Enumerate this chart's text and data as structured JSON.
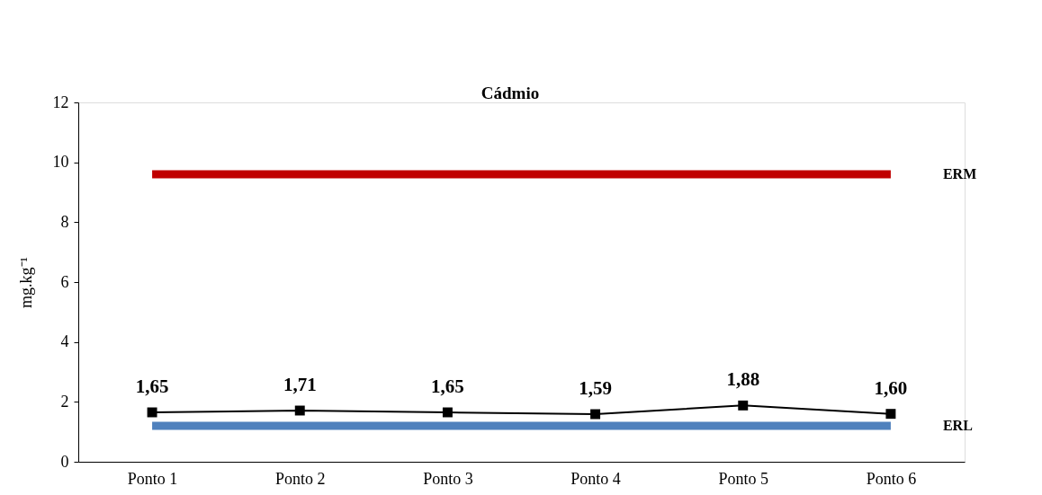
{
  "chart_data": {
    "type": "line",
    "title": "Cádmio",
    "ylabel": "mg.kg⁻¹",
    "categories": [
      "Ponto 1",
      "Ponto 2",
      "Ponto 3",
      "Ponto 4",
      "Ponto 5",
      "Ponto 6"
    ],
    "series": [
      {
        "name": "ERM",
        "color": "#c00000",
        "marker": "none",
        "values": [
          9.6,
          9.6,
          9.6,
          9.6,
          9.6,
          9.6
        ]
      },
      {
        "name": "ERL",
        "color": "#4f81bd",
        "marker": "none",
        "values": [
          1.2,
          1.2,
          1.2,
          1.2,
          1.2,
          1.2
        ]
      },
      {
        "color": "#000000",
        "marker": "square",
        "values": [
          1.65,
          1.71,
          1.65,
          1.59,
          1.88,
          1.6
        ],
        "value_labels": [
          "1,65",
          "1,71",
          "1,65",
          "1,59",
          "1,88",
          "1,60"
        ]
      }
    ],
    "ylim": [
      0,
      12
    ],
    "yticks": [
      0,
      2,
      4,
      6,
      8,
      10,
      12
    ]
  }
}
